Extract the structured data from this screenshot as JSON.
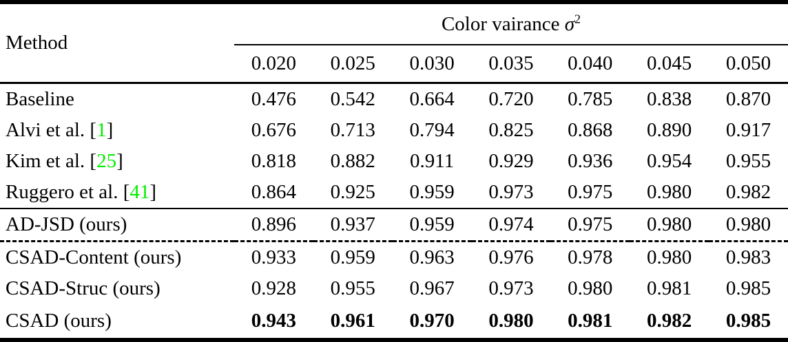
{
  "page": {
    "background": "#ffffff",
    "text_color": "#000000",
    "citation_color": "#00ee00"
  },
  "table": {
    "method_header": "Method",
    "group_header": {
      "prefix": "Color vairance ",
      "symbol": "σ",
      "exponent": "2"
    },
    "columns": [
      "0.020",
      "0.025",
      "0.030",
      "0.035",
      "0.040",
      "0.045",
      "0.050"
    ],
    "rows": [
      {
        "label_prefix": "Baseline",
        "cite": "",
        "label_suffix": "",
        "values": [
          "0.476",
          "0.542",
          "0.664",
          "0.720",
          "0.785",
          "0.838",
          "0.870"
        ],
        "bold": false,
        "rule_before": null,
        "rule_after": null
      },
      {
        "label_prefix": "Alvi et al. [",
        "cite": "1",
        "label_suffix": "]",
        "values": [
          "0.676",
          "0.713",
          "0.794",
          "0.825",
          "0.868",
          "0.890",
          "0.917"
        ],
        "bold": false,
        "rule_before": null,
        "rule_after": null
      },
      {
        "label_prefix": "Kim et al. [",
        "cite": "25",
        "label_suffix": "]",
        "values": [
          "0.818",
          "0.882",
          "0.911",
          "0.929",
          "0.936",
          "0.954",
          "0.955"
        ],
        "bold": false,
        "rule_before": null,
        "rule_after": null
      },
      {
        "label_prefix": "Ruggero et al. [",
        "cite": "41",
        "label_suffix": "]",
        "values": [
          "0.864",
          "0.925",
          "0.959",
          "0.973",
          "0.975",
          "0.980",
          "0.982"
        ],
        "bold": false,
        "rule_before": null,
        "rule_after": null
      },
      {
        "label_prefix": "AD-JSD (ours)",
        "cite": "",
        "label_suffix": "",
        "values": [
          "0.896",
          "0.937",
          "0.959",
          "0.974",
          "0.975",
          "0.980",
          "0.980"
        ],
        "bold": false,
        "rule_before": "solid",
        "rule_after": "dashed"
      },
      {
        "label_prefix": "CSAD-Content (ours)",
        "cite": "",
        "label_suffix": "",
        "values": [
          "0.933",
          "0.959",
          "0.963",
          "0.976",
          "0.978",
          "0.980",
          "0.983"
        ],
        "bold": false,
        "rule_before": null,
        "rule_after": null
      },
      {
        "label_prefix": "CSAD-Struc (ours)",
        "cite": "",
        "label_suffix": "",
        "values": [
          "0.928",
          "0.955",
          "0.967",
          "0.973",
          "0.980",
          "0.981",
          "0.985"
        ],
        "bold": false,
        "rule_before": null,
        "rule_after": null
      },
      {
        "label_prefix": "CSAD (ours)",
        "cite": "",
        "label_suffix": "",
        "values": [
          "0.943",
          "0.961",
          "0.970",
          "0.980",
          "0.981",
          "0.982",
          "0.985"
        ],
        "bold": true,
        "rule_before": null,
        "rule_after": null
      }
    ]
  }
}
